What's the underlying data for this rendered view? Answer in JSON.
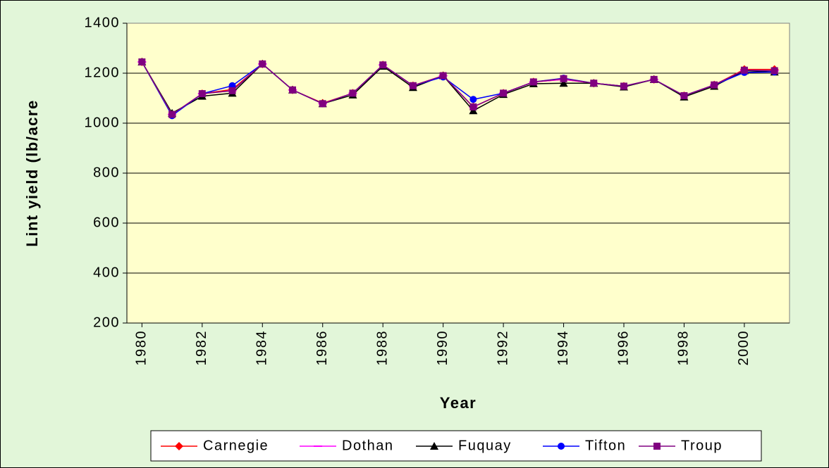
{
  "chart_data": {
    "type": "line",
    "x_label": "Year",
    "y_label": "Lint yield (lb/acre",
    "x": [
      1980,
      1981,
      1982,
      1983,
      1984,
      1985,
      1986,
      1987,
      1988,
      1989,
      1990,
      1991,
      1992,
      1993,
      1994,
      1995,
      1996,
      1997,
      1998,
      1999,
      2000,
      2001
    ],
    "xlim": [
      1979.5,
      2001.5
    ],
    "xticks": [
      1980,
      1982,
      1984,
      1986,
      1988,
      1990,
      1992,
      1994,
      1996,
      1998,
      2000
    ],
    "ylim": [
      200,
      1400
    ],
    "yticks": [
      200,
      400,
      600,
      800,
      1000,
      1200,
      1400
    ],
    "grid": true,
    "legend": "bottom",
    "series": [
      {
        "name": "Carnegie",
        "color": "#ff0000",
        "marker": "diamond",
        "values": [
          1245,
          1035,
          1118,
          1135,
          1237,
          1133,
          1080,
          1120,
          1233,
          1150,
          1190,
          1065,
          1120,
          1165,
          1175,
          1160,
          1148,
          1175,
          1110,
          1153,
          1215,
          1215
        ]
      },
      {
        "name": "Dothan",
        "color": "#ff00ff",
        "marker": "dash",
        "values": [
          1245,
          1035,
          1118,
          1130,
          1237,
          1133,
          1078,
          1120,
          1233,
          1150,
          1190,
          1065,
          1120,
          1165,
          1175,
          1160,
          1148,
          1175,
          1110,
          1153,
          1212,
          1210
        ]
      },
      {
        "name": "Fuquay",
        "color": "#000000",
        "marker": "triangle",
        "values": [
          1245,
          1040,
          1108,
          1120,
          1237,
          1133,
          1078,
          1113,
          1228,
          1143,
          1190,
          1050,
          1115,
          1158,
          1160,
          1160,
          1145,
          1175,
          1105,
          1148,
          1210,
          1205
        ]
      },
      {
        "name": "Tifton",
        "color": "#0000ff",
        "marker": "circle",
        "values": [
          1245,
          1030,
          1118,
          1150,
          1237,
          1133,
          1078,
          1120,
          1233,
          1150,
          1185,
          1095,
          1120,
          1165,
          1180,
          1160,
          1148,
          1175,
          1110,
          1153,
          1203,
          1205
        ]
      },
      {
        "name": "Troup",
        "color": "#800080",
        "marker": "square",
        "values": [
          1245,
          1035,
          1118,
          1130,
          1237,
          1133,
          1078,
          1120,
          1233,
          1150,
          1190,
          1065,
          1120,
          1165,
          1178,
          1160,
          1148,
          1175,
          1110,
          1153,
          1212,
          1210
        ]
      }
    ]
  }
}
